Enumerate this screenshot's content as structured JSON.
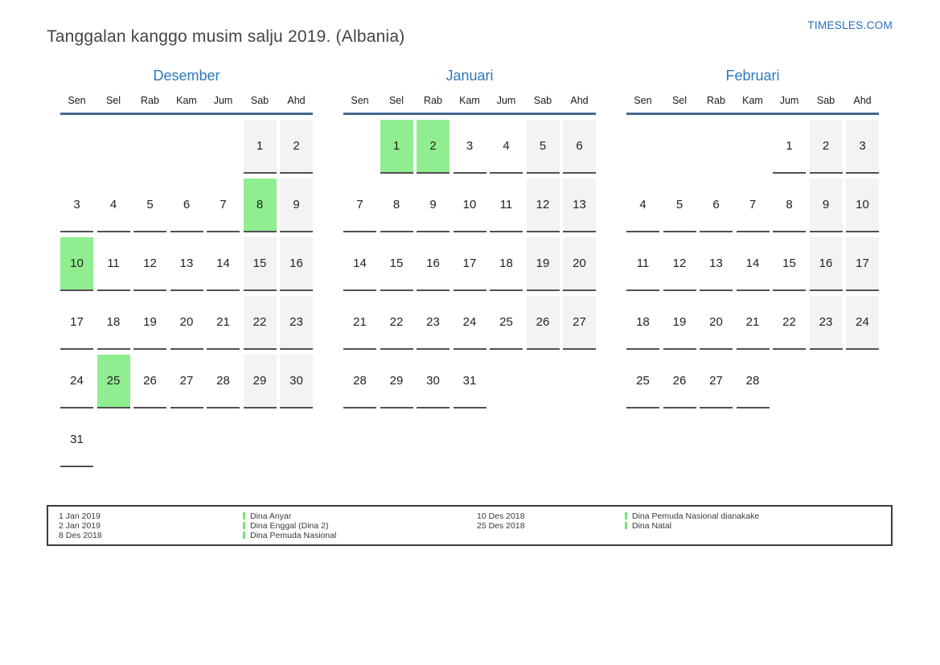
{
  "page": {
    "title": "Tanggalan kanggo musim salju 2019. (Albania)",
    "site_link": "TIMESLES.COM"
  },
  "colors": {
    "accent_blue": "#2d79bc",
    "line_blue": "#44688f",
    "link_blue": "#1e6fbf",
    "holiday_green": "#90ee90",
    "legend_bar_green": "#76e576",
    "weekend_gray": "#f3f3f3",
    "cell_underline": "#515151"
  },
  "weekdays": [
    "Sen",
    "Sel",
    "Rab",
    "Kam",
    "Jum",
    "Sab",
    "Ahd"
  ],
  "months": [
    {
      "name": "Desember",
      "holidays": [
        8,
        10,
        25
      ],
      "weeks": [
        [
          "",
          "",
          "",
          "",
          "",
          "1",
          "2"
        ],
        [
          "3",
          "4",
          "5",
          "6",
          "7",
          "8",
          "9"
        ],
        [
          "10",
          "11",
          "12",
          "13",
          "14",
          "15",
          "16"
        ],
        [
          "17",
          "18",
          "19",
          "20",
          "21",
          "22",
          "23"
        ],
        [
          "24",
          "25",
          "26",
          "27",
          "28",
          "29",
          "30"
        ],
        [
          "31",
          "",
          "",
          "",
          "",
          "",
          ""
        ]
      ]
    },
    {
      "name": "Januari",
      "holidays": [
        1,
        2
      ],
      "weeks": [
        [
          "",
          "1",
          "2",
          "3",
          "4",
          "5",
          "6"
        ],
        [
          "7",
          "8",
          "9",
          "10",
          "11",
          "12",
          "13"
        ],
        [
          "14",
          "15",
          "16",
          "17",
          "18",
          "19",
          "20"
        ],
        [
          "21",
          "22",
          "23",
          "24",
          "25",
          "26",
          "27"
        ],
        [
          "28",
          "29",
          "30",
          "31",
          "",
          "",
          ""
        ]
      ]
    },
    {
      "name": "Februari",
      "holidays": [],
      "weeks": [
        [
          "",
          "",
          "",
          "",
          "1",
          "2",
          "3"
        ],
        [
          "4",
          "5",
          "6",
          "7",
          "8",
          "9",
          "10"
        ],
        [
          "11",
          "12",
          "13",
          "14",
          "15",
          "16",
          "17"
        ],
        [
          "18",
          "19",
          "20",
          "21",
          "22",
          "23",
          "24"
        ],
        [
          "25",
          "26",
          "27",
          "28",
          "",
          "",
          ""
        ]
      ]
    }
  ],
  "legend": {
    "left": [
      {
        "date": "1 Jan 2019",
        "name": "Dina Anyar"
      },
      {
        "date": "2 Jan 2019",
        "name": "Dina Enggal (Dina 2)"
      },
      {
        "date": "8 Des 2018",
        "name": "Dina Pemuda Nasional"
      }
    ],
    "right": [
      {
        "date": "10 Des 2018",
        "name": "Dina Pemuda Nasional dianakake"
      },
      {
        "date": "25 Des 2018",
        "name": "Dina Natal"
      }
    ]
  }
}
